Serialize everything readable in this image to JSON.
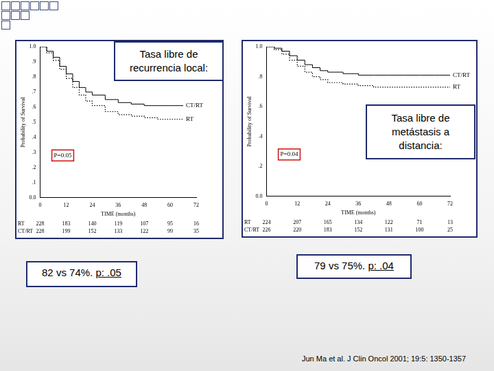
{
  "chart_data": [
    {
      "type": "line",
      "title": "Tasa libre de recurrencia local:",
      "x_label": "TIME (months)",
      "y_label": "Probability of Survival",
      "x": [
        0,
        3,
        6,
        9,
        12,
        15,
        18,
        21,
        24,
        30,
        36,
        42,
        48,
        54,
        60,
        66,
        72
      ],
      "xlim": [
        0,
        72
      ],
      "xticks": [
        0,
        12,
        24,
        36,
        48,
        60,
        72
      ],
      "ylim": [
        0,
        1
      ],
      "yticks": [
        {
          "value": 0,
          "label": "0.0"
        },
        {
          "value": 0.1,
          "label": ".1"
        },
        {
          "value": 0.2,
          "label": ".2"
        },
        {
          "value": 0.3,
          "label": ".3"
        },
        {
          "value": 0.4,
          "label": ".4"
        },
        {
          "value": 0.5,
          "label": ".5"
        },
        {
          "value": 0.6,
          "label": ".6"
        },
        {
          "value": 0.7,
          "label": ".7"
        },
        {
          "value": 0.8,
          "label": ".8"
        },
        {
          "value": 0.9,
          "label": ".9"
        },
        {
          "value": 1,
          "label": "1.0"
        }
      ],
      "grid": false,
      "series": [
        {
          "name": "CT/RT",
          "color": "#000000",
          "line_style": "solid",
          "values": [
            1,
            0.97,
            0.93,
            0.87,
            0.82,
            0.77,
            0.73,
            0.7,
            0.68,
            0.65,
            0.63,
            0.62,
            0.61,
            0.61,
            0.61,
            0.61,
            null
          ]
        },
        {
          "name": "RT",
          "color": "#000000",
          "line_style": "dotted",
          "values": [
            1,
            0.96,
            0.91,
            0.85,
            0.79,
            0.73,
            0.68,
            0.64,
            0.61,
            0.57,
            0.55,
            0.54,
            0.53,
            0.52,
            0.52,
            0.52,
            null
          ]
        }
      ],
      "annotations": [
        "P=0.05"
      ],
      "at_risk": {
        "x": [
          0,
          12,
          24,
          36,
          48,
          60,
          72
        ],
        "rows": [
          {
            "name": "RT",
            "values": [
              228,
              183,
              140,
              119,
              107,
              95,
              16
            ]
          },
          {
            "name": "CT/RT",
            "values": [
              228,
              199,
              152,
              133,
              122,
              99,
              35
            ]
          }
        ]
      },
      "summary": {
        "result": "82 vs 74%.",
        "p": "p: .05"
      }
    },
    {
      "type": "line",
      "title": "Tasa libre de metástasis a distancia:",
      "x_label": "TIME (months)",
      "y_label": "Probability of Survival",
      "x": [
        0,
        3,
        6,
        9,
        12,
        15,
        18,
        21,
        24,
        30,
        36,
        42,
        48,
        54,
        60,
        66,
        72
      ],
      "xlim": [
        0,
        72
      ],
      "xticks": [
        0,
        12,
        24,
        36,
        48,
        60,
        72
      ],
      "ylim": [
        0,
        1
      ],
      "yticks": [
        {
          "value": 0,
          "label": "0.0"
        },
        {
          "value": 0.2,
          "label": ".2"
        },
        {
          "value": 0.4,
          "label": ".4"
        },
        {
          "value": 0.6,
          "label": ".6"
        },
        {
          "value": 0.8,
          "label": ".8"
        },
        {
          "value": 1,
          "label": "1.0"
        }
      ],
      "grid": false,
      "series": [
        {
          "name": "CT/RT",
          "color": "#000000",
          "line_style": "solid",
          "values": [
            1,
            0.99,
            0.97,
            0.94,
            0.91,
            0.88,
            0.86,
            0.84,
            0.83,
            0.82,
            0.81,
            0.81,
            0.81,
            0.81,
            0.81,
            0.81,
            0.81
          ]
        },
        {
          "name": "RT",
          "color": "#000000",
          "line_style": "dotted",
          "values": [
            1,
            0.98,
            0.95,
            0.91,
            0.87,
            0.83,
            0.8,
            0.78,
            0.76,
            0.75,
            0.74,
            0.73,
            0.73,
            0.73,
            0.73,
            0.73,
            0.73
          ]
        }
      ],
      "annotations": [
        "P=0.04"
      ],
      "at_risk": {
        "x": [
          0,
          12,
          24,
          36,
          48,
          60,
          72
        ],
        "rows": [
          {
            "name": "RT",
            "values": [
              224,
              207,
              165,
              134,
              122,
              71,
              13
            ]
          },
          {
            "name": "CT/RT",
            "values": [
              226,
              220,
              183,
              152,
              131,
              100,
              25
            ]
          }
        ]
      },
      "summary": {
        "result": "79 vs 75%.",
        "p": "p: .04"
      }
    }
  ],
  "citation": "Jun Ma et al. J Clin Oncol 2001; 19:5: 1350-1357"
}
